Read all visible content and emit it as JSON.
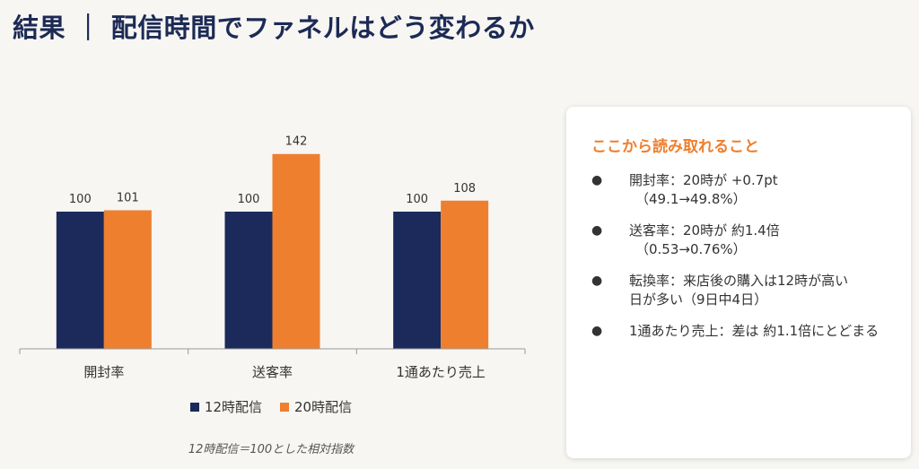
{
  "title": "結果 ｜ 配信時間でファネルはどう変わるか",
  "colors": {
    "series1": "#1b2a5b",
    "series2": "#ee7f2f",
    "accent": "#ef7f2e"
  },
  "chart_data": {
    "type": "bar",
    "categories": [
      "開封率",
      "送客率",
      "1通あたり売上"
    ],
    "series": [
      {
        "name": "12時配信",
        "values": [
          100,
          100,
          100
        ]
      },
      {
        "name": "20時配信",
        "values": [
          101,
          142,
          108
        ]
      }
    ],
    "ylim": [
      0,
      150
    ],
    "grid": false,
    "legend": "bottom",
    "note": "12時配信＝100とした相対指数"
  },
  "panel": {
    "title": "ここから読み取れること",
    "items": [
      {
        "line1": "開封率：20時が +0.7pt",
        "line2": "（49.1→49.8%）"
      },
      {
        "line1": "送客率：20時が 約1.4倍",
        "line2": "（0.53→0.76%）"
      },
      {
        "line1": "転換率：来店後の購入は12時が高い",
        "line2": "日が多い（9日中4日）"
      },
      {
        "line1": "1通あたり売上：差は 約1.1倍にとどまる",
        "line2": ""
      }
    ]
  }
}
